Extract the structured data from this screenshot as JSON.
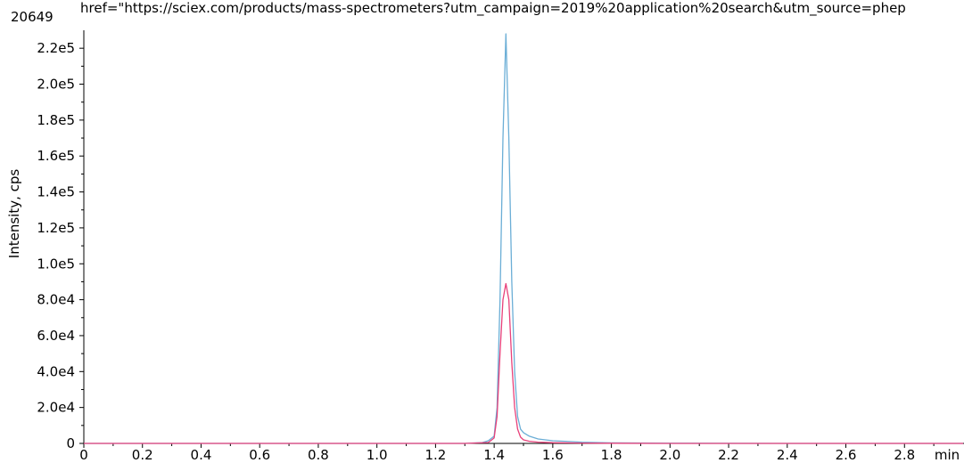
{
  "header": {
    "number": "20649",
    "overflow_text": "href=\"https://sciex.com/products/mass-spectrometers?utm_campaign=2019%20application%20search&utm_source=phep"
  },
  "chart_data": {
    "type": "line",
    "title": "",
    "xlabel": "",
    "ylabel": "Intensity, cps",
    "x_unit": "min",
    "xlim": [
      0,
      3.0
    ],
    "ylim": [
      0,
      230000
    ],
    "x_ticks": [
      0,
      0.2,
      0.4,
      0.6,
      0.8,
      1.0,
      1.2,
      1.4,
      1.6,
      1.8,
      2.0,
      2.2,
      2.4,
      2.6,
      2.8
    ],
    "x_tick_labels": [
      "0",
      "0.2",
      "0.4",
      "0.6",
      "0.8",
      "1.0",
      "1.2",
      "1.4",
      "1.6",
      "1.8",
      "2.0",
      "2.2",
      "2.4",
      "2.6",
      "2.8"
    ],
    "y_ticks": [
      0,
      20000,
      40000,
      60000,
      80000,
      100000,
      120000,
      140000,
      160000,
      180000,
      200000,
      220000
    ],
    "y_tick_labels": [
      "0",
      "2.0e4",
      "4.0e4",
      "6.0e4",
      "8.0e4",
      "1.0e5",
      "1.2e5",
      "1.4e5",
      "1.6e5",
      "1.8e5",
      "2.0e5",
      "2.2e5"
    ],
    "grid": false,
    "legend": "none",
    "series": [
      {
        "color": "#6baed6",
        "x": [
          0,
          1.3,
          1.36,
          1.38,
          1.4,
          1.41,
          1.42,
          1.43,
          1.44,
          1.45,
          1.46,
          1.47,
          1.48,
          1.49,
          1.5,
          1.52,
          1.55,
          1.6,
          1.7,
          1.8,
          2.0,
          2.5,
          3.0
        ],
        "y": [
          0,
          0,
          500,
          1500,
          4000,
          20000,
          80000,
          170000,
          228000,
          170000,
          90000,
          40000,
          15000,
          8000,
          6000,
          4000,
          2500,
          1500,
          700,
          300,
          100,
          0,
          0
        ]
      },
      {
        "color": "#e8417a",
        "x": [
          0,
          1.3,
          1.38,
          1.4,
          1.41,
          1.42,
          1.43,
          1.44,
          1.45,
          1.46,
          1.47,
          1.48,
          1.49,
          1.5,
          1.52,
          1.55,
          1.6,
          1.7,
          1.8,
          2.0,
          2.5,
          3.0
        ],
        "y": [
          0,
          0,
          500,
          3000,
          15000,
          50000,
          80000,
          89000,
          80000,
          45000,
          20000,
          8000,
          3500,
          2000,
          1200,
          700,
          400,
          200,
          100,
          0,
          0,
          0
        ]
      }
    ]
  }
}
